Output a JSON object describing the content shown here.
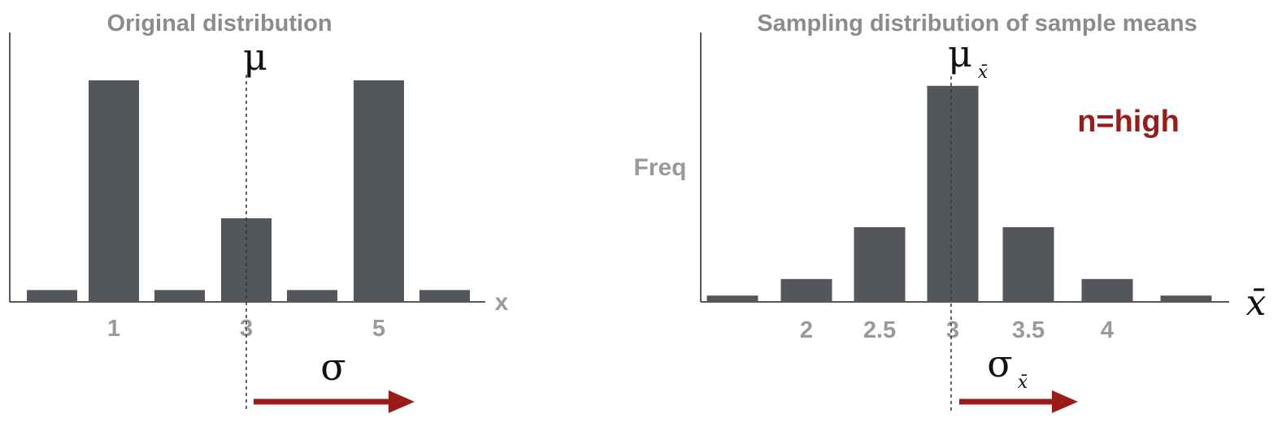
{
  "colors": {
    "bar": "#53575c",
    "axis": "#222222",
    "text_gray": "#9a9a9a",
    "accent_red": "#9b1b1b"
  },
  "chart_data": [
    {
      "type": "bar",
      "title": "Original distribution",
      "xlabel": "x",
      "ylabel": "",
      "categories": [
        "",
        "1",
        "",
        "3",
        "",
        "5",
        ""
      ],
      "values": [
        1,
        20,
        1,
        7.5,
        1,
        20,
        1
      ],
      "ylim": [
        0,
        24
      ],
      "mean_label": "μ",
      "mean_category_index": 3,
      "spread_label": "σ",
      "grid": false
    },
    {
      "type": "bar",
      "title": "Sampling distribution of sample means",
      "xlabel": "x̄",
      "ylabel": "Freq",
      "categories": [
        "",
        "2",
        "2.5",
        "3",
        "3.5",
        "4",
        ""
      ],
      "values": [
        0.5,
        2,
        6.7,
        19.5,
        6.7,
        2,
        0.5
      ],
      "ylim": [
        0,
        24
      ],
      "mean_label": "μ",
      "mean_subscript": "x̄",
      "mean_category_index": 3,
      "spread_label": "σ",
      "spread_subscript": "x̄",
      "annotation": "n=high",
      "grid": false
    }
  ]
}
